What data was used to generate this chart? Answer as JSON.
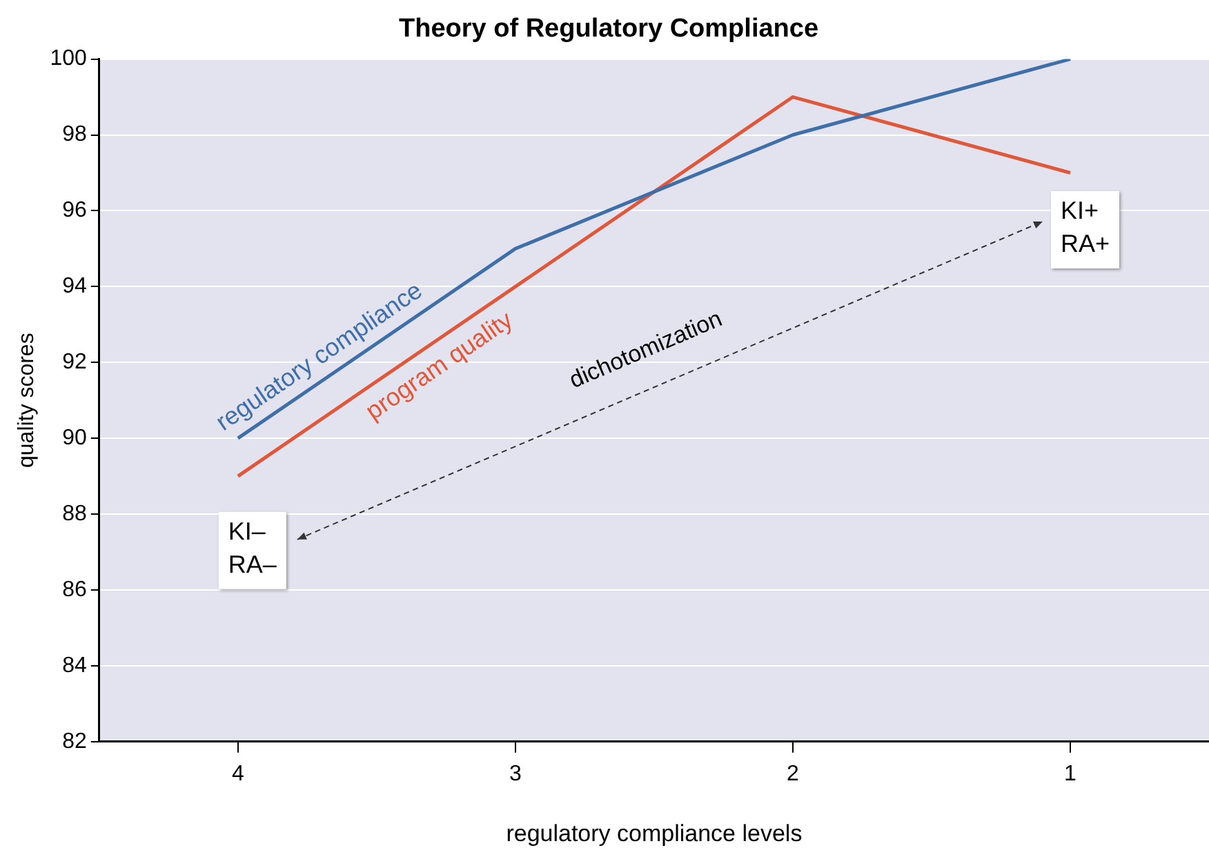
{
  "chart_data": {
    "type": "line",
    "title": "Theory of Regulatory Compliance",
    "xlabel": "regulatory compliance levels",
    "ylabel": "quality scores",
    "categories": [
      "4",
      "3",
      "2",
      "1"
    ],
    "series": [
      {
        "name": "regulatory compliance",
        "color": "#3f6fa8",
        "values": [
          90,
          95,
          98,
          100
        ]
      },
      {
        "name": "program quality",
        "color": "#e0573a",
        "values": [
          89,
          94,
          99,
          97
        ]
      }
    ],
    "ylim": [
      82,
      100
    ],
    "yticks": [
      82,
      84,
      86,
      88,
      90,
      92,
      94,
      96,
      98,
      100
    ],
    "grid": "y",
    "legend": false,
    "marker": "none",
    "line_style": "solid",
    "annotations": [
      "KI–\nRA–",
      "dichotomization",
      "KI+\nRA+"
    ]
  }
}
